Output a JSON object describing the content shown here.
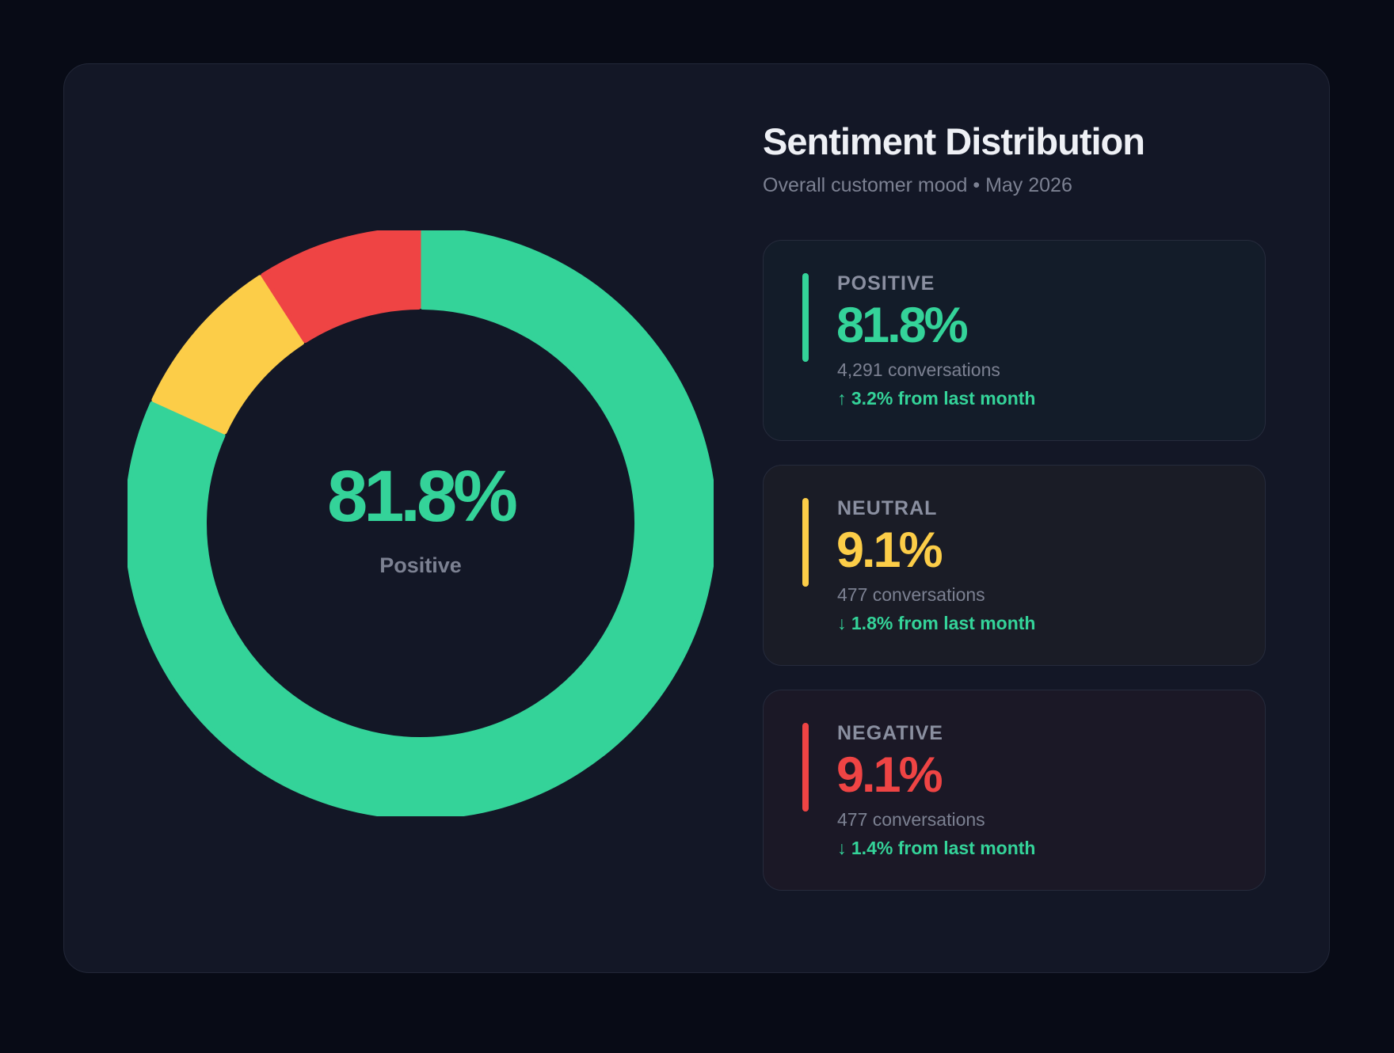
{
  "title": "Sentiment Distribution",
  "subtitle": "Overall customer mood • May 2026",
  "center": {
    "value": "81.8%",
    "label": "Positive"
  },
  "stats": [
    {
      "label": "POSITIVE",
      "value": "81.8%",
      "count": "4,291 conversations",
      "change": "↑ 3.2% from last month",
      "color": "#34d399",
      "bg": "#131c29"
    },
    {
      "label": "NEUTRAL",
      "value": "9.1%",
      "count": "477 conversations",
      "change": "↓ 1.8% from last month",
      "color": "#fccd48",
      "bg": "#1a1c26"
    },
    {
      "label": "NEGATIVE",
      "value": "9.1%",
      "count": "477 conversations",
      "change": "↓ 1.4% from last month",
      "color": "#ef4444",
      "bg": "#1b1826"
    }
  ],
  "chart_data": {
    "type": "pie",
    "donut": true,
    "categories": [
      "Positive",
      "Neutral",
      "Negative"
    ],
    "values": [
      81.8,
      9.1,
      9.1
    ],
    "colors": [
      "#34d399",
      "#fccd48",
      "#ef4444"
    ]
  }
}
